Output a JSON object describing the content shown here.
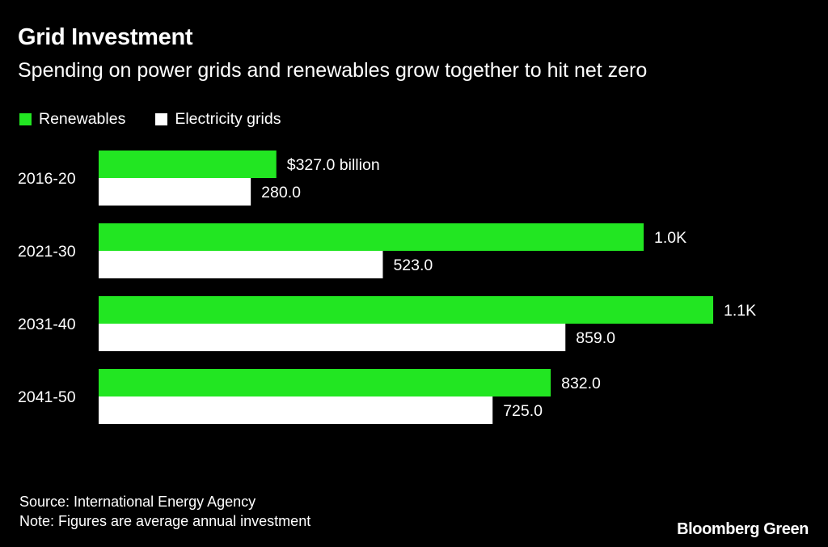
{
  "chart_data": {
    "type": "bar",
    "orientation": "horizontal",
    "title": "Grid Investment",
    "subtitle": "Spending on power grids and renewables grow together to hit net zero",
    "categories": [
      "2016-20",
      "2021-30",
      "2031-40",
      "2041-50"
    ],
    "series": [
      {
        "name": "Renewables",
        "color": "#22e622",
        "values": [
          327.0,
          1003,
          1131,
          832.0
        ],
        "labels": [
          "$327.0 billion",
          "1.0K",
          "1.1K",
          "832.0"
        ]
      },
      {
        "name": "Electricity grids",
        "color": "#ffffff",
        "values": [
          280.0,
          523.0,
          859.0,
          725.0
        ],
        "labels": [
          "280.0",
          "523.0",
          "859.0",
          "725.0"
        ]
      }
    ],
    "xlim": [
      0,
      1200
    ],
    "unit": "billion USD",
    "grid": false,
    "legend_position": "top-left"
  },
  "footer": {
    "source": "Source: International Energy Agency",
    "note": "Note: Figures are average annual investment",
    "brand": "Bloomberg Green"
  }
}
